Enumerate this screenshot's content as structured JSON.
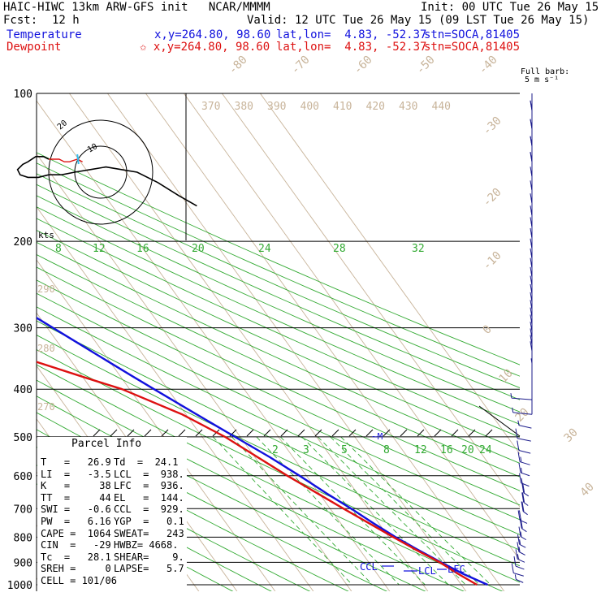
{
  "header": {
    "model": "HAIC-HIWC 13km ARW-GFS init   NCAR/MMMM",
    "init": "Init: 00 UTC Tue 26 May 15",
    "fcst_label": "Fcst:",
    "fcst_value": "12 h",
    "valid": "Valid: 12 UTC Tue 26 May 15 (09 LST Tue 26 May 15)",
    "temp_label": "Temperature",
    "temp_loc": "x,y=264.80, 98.60",
    "temp_latlon": "lat,lon=  4.83, -52.37",
    "temp_stn": "stn=SOCA,81405",
    "dew_label": "Dewpoint",
    "dew_loc": "✩ x,y=264.80, 98.60",
    "dew_latlon": "lat,lon=  4.83, -52.37",
    "dew_stn": "stn=SOCA,81405",
    "barb_label1": "Full barb:",
    "barb_label2": "5 m s⁻¹"
  },
  "colors": {
    "temperature": "#1111dd",
    "dewpoint": "#dd1111",
    "isotherm": "#c8b49a",
    "dry_adiabat": "#33aa33",
    "mixing_ratio": "#33aa33",
    "isobar": "#000000",
    "wind_barb": "#1a1a8a"
  },
  "chart_data": {
    "type": "line",
    "title": "",
    "pressure_levels": [
      100,
      200,
      300,
      400,
      500,
      600,
      700,
      800,
      900,
      1000
    ],
    "pressure_labels": [
      "100",
      "200",
      "300",
      "400",
      "500",
      "600",
      "700",
      "800",
      "900",
      "1000"
    ],
    "isotherm_labels": [
      "-80",
      "-70",
      "-60",
      "-50",
      "-40",
      "-30",
      "-20",
      "-10",
      "0",
      "10",
      "20",
      "30",
      "40"
    ],
    "theta_labels": [
      "370",
      "380",
      "390",
      "400",
      "410",
      "420",
      "430",
      "440"
    ],
    "theta_left_labels": [
      "290",
      "280",
      "270"
    ],
    "upper_mix_labels": [
      "8",
      "12",
      "16",
      "20",
      "24",
      "28",
      "32"
    ],
    "lower_mix_labels": [
      "2",
      "3",
      "5",
      "8",
      "12",
      "16",
      "20",
      "24"
    ],
    "series": [
      {
        "name": "Temperature",
        "points": [
          [
            100,
            -73.6
          ],
          [
            115,
            -71.6
          ],
          [
            130,
            -69.5
          ],
          [
            150,
            -66.3
          ],
          [
            175,
            -62.0
          ],
          [
            200,
            -57.0
          ],
          [
            225,
            -52.2
          ],
          [
            250,
            -47.4
          ],
          [
            275,
            -43.0
          ],
          [
            300,
            -38.5
          ],
          [
            325,
            -34.4
          ],
          [
            350,
            -30.6
          ],
          [
            375,
            -27.0
          ],
          [
            400,
            -23.6
          ],
          [
            450,
            -17.2
          ],
          [
            500,
            -11.4
          ],
          [
            550,
            -6.1
          ],
          [
            600,
            -1.8
          ],
          [
            650,
            1.8
          ],
          [
            700,
            5.5
          ],
          [
            750,
            8.6
          ],
          [
            800,
            11.8
          ],
          [
            850,
            15.3
          ],
          [
            900,
            18.9
          ],
          [
            950,
            22.5
          ],
          [
            1000,
            26.9
          ]
        ]
      },
      {
        "name": "Dewpoint",
        "points": [
          [
            100,
            -83.0
          ],
          [
            130,
            -83.2
          ],
          [
            170,
            -79.0
          ],
          [
            195,
            -80.4
          ],
          [
            200,
            -80.0
          ],
          [
            220,
            -78.0
          ],
          [
            250,
            -75.4
          ],
          [
            270,
            -72.0
          ],
          [
            290,
            -68.7
          ],
          [
            320,
            -62.0
          ],
          [
            350,
            -50.0
          ],
          [
            380,
            -39.0
          ],
          [
            400,
            -32.0
          ],
          [
            450,
            -21.0
          ],
          [
            500,
            -14.0
          ],
          [
            600,
            -5.0
          ],
          [
            700,
            3.5
          ],
          [
            800,
            11.2
          ],
          [
            850,
            14.8
          ],
          [
            900,
            18.6
          ],
          [
            950,
            21.2
          ],
          [
            1000,
            24.1
          ]
        ]
      }
    ],
    "wind_barbs": [
      [
        110,
        0,
        -9
      ],
      [
        120,
        0,
        -9
      ],
      [
        130,
        0,
        -9
      ],
      [
        140,
        0,
        -9
      ],
      [
        150,
        0,
        -8
      ],
      [
        160,
        0,
        -8
      ],
      [
        170,
        0,
        -8
      ],
      [
        180,
        0,
        -8
      ],
      [
        190,
        0,
        -8
      ],
      [
        200,
        0,
        -8
      ],
      [
        210,
        0,
        -8
      ],
      [
        220,
        0,
        -7
      ],
      [
        230,
        0,
        -7
      ],
      [
        240,
        0,
        -7
      ],
      [
        250,
        0,
        -6
      ],
      [
        260,
        0,
        -6
      ],
      [
        270,
        0,
        -6
      ],
      [
        280,
        0,
        -6
      ],
      [
        290,
        0,
        -6
      ],
      [
        300,
        0,
        -6
      ],
      [
        310,
        0,
        -6
      ],
      [
        320,
        0,
        -5
      ],
      [
        330,
        0,
        -5
      ],
      [
        340,
        0,
        -4
      ],
      [
        360,
        0,
        -2
      ],
      [
        390,
        0,
        -1
      ],
      [
        420,
        2,
        -1
      ],
      [
        450,
        3,
        -2
      ],
      [
        480,
        2,
        -3
      ],
      [
        510,
        3,
        -4
      ],
      [
        540,
        3,
        -5
      ],
      [
        570,
        3,
        -6
      ],
      [
        600,
        3,
        -7
      ],
      [
        630,
        3,
        -8
      ],
      [
        660,
        2,
        -9
      ],
      [
        690,
        2,
        -10
      ],
      [
        720,
        2,
        -10
      ],
      [
        750,
        3,
        -9
      ],
      [
        780,
        2,
        -9
      ],
      [
        810,
        2,
        -8
      ],
      [
        840,
        2,
        -7
      ],
      [
        870,
        2,
        -7
      ],
      [
        900,
        2,
        -6
      ],
      [
        930,
        2,
        -5
      ],
      [
        960,
        2,
        -4
      ],
      [
        990,
        1,
        -3
      ]
    ],
    "hodograph": {
      "ring_labels": [
        "10",
        "20"
      ],
      "units": "kts",
      "points": [
        [
          37,
          -13
        ],
        [
          30,
          -9
        ],
        [
          22,
          -4
        ],
        [
          14,
          0
        ],
        [
          8,
          1
        ],
        [
          2,
          2
        ],
        [
          -4,
          1
        ],
        [
          -10,
          0
        ],
        [
          -15,
          -1
        ],
        [
          -20,
          -1
        ],
        [
          -24,
          -2
        ],
        [
          -28,
          -2
        ],
        [
          -31,
          -1
        ],
        [
          -32,
          1
        ],
        [
          -30,
          3
        ],
        [
          -28,
          4
        ],
        [
          -25,
          6
        ],
        [
          -22,
          6
        ],
        [
          -20,
          5
        ],
        [
          -16,
          5
        ],
        [
          -14,
          4
        ],
        [
          -12,
          4
        ],
        [
          -9,
          5
        ],
        [
          -7,
          4
        ]
      ]
    },
    "annotations": {
      "el": "EL",
      "ccl": "CCL",
      "lcl": "LCL",
      "lfc": "LFC"
    }
  },
  "parcel": {
    "title": "Parcel Info",
    "rows": [
      {
        "a": "T   =   26.9",
        "b": "Td  =  24.1"
      },
      {
        "a": "LI  =   -3.5",
        "b": "LCL  =  938."
      },
      {
        "a": "K   =     38",
        "b": "LFC  =  936."
      },
      {
        "a": "TT  =     44",
        "b": "EL   =  144."
      },
      {
        "a": "SWI =   -0.6",
        "b": "CCL  =  929."
      },
      {
        "a": "PW  =   6.16",
        "b": "YGP  =   0.1"
      },
      {
        "a": "CAPE =  1064",
        "b": "SWEAT=   243"
      },
      {
        "a": "CIN  =   -29",
        "b": "HWBZ= 4668."
      },
      {
        "a": "Tc  =   28.1",
        "b": "SHEAR=    9."
      },
      {
        "a": "SREH =     0",
        "b": "LAPSE=   5.7"
      },
      {
        "a": "CELL = 101/06",
        "b": ""
      }
    ]
  }
}
